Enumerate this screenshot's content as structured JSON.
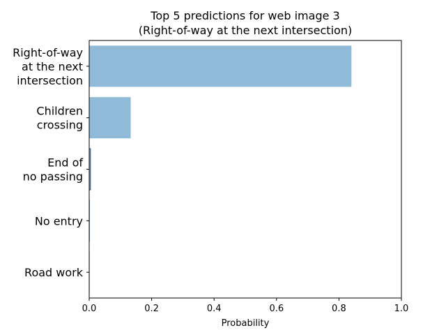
{
  "chart_data": {
    "type": "bar",
    "orientation": "horizontal",
    "title": "Top 5 predictions for web image 3",
    "subtitle": "(Right-of-way at the next intersection)",
    "xlabel": "Probability",
    "ylabel": "",
    "xlim": [
      0,
      1.0
    ],
    "xticks": [
      "0.0",
      "0.2",
      "0.4",
      "0.6",
      "0.8",
      "1.0"
    ],
    "categories": [
      [
        "Right-of-way",
        "at the next",
        "intersection"
      ],
      [
        "Children",
        "crossing"
      ],
      [
        "End of",
        "no passing"
      ],
      [
        "No entry"
      ],
      [
        "Road work"
      ]
    ],
    "values": [
      0.84,
      0.133,
      0.004,
      0.0005,
      0.0002
    ],
    "bar_color": "#8fbbd9",
    "edge_color": "#1f4e79",
    "grid": false,
    "legend": "none"
  }
}
